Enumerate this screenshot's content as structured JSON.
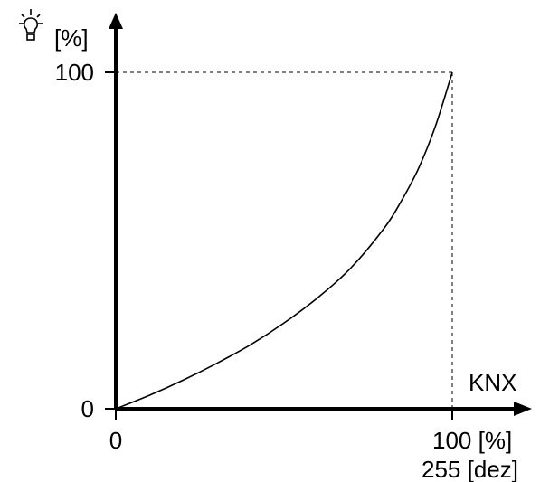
{
  "chart_data": {
    "type": "line",
    "y_unit": "[%]",
    "x_label": "KNX",
    "x_ticks": [
      {
        "value": 0,
        "label": "0",
        "sublabel": ""
      },
      {
        "value": 100,
        "label": "100 [%]",
        "sublabel": "255 [dez]"
      }
    ],
    "y_ticks": [
      {
        "value": 0,
        "label": "0"
      },
      {
        "value": 100,
        "label": "100"
      }
    ],
    "xlim": [
      0,
      100
    ],
    "ylim": [
      0,
      100
    ],
    "series": [
      {
        "x": [
          0,
          10,
          20,
          30,
          40,
          50,
          60,
          70,
          80,
          85,
          90,
          95,
          100
        ],
        "y": [
          0,
          4,
          8.5,
          13.5,
          19,
          25.5,
          33,
          42,
          54,
          62,
          71.5,
          84,
          100
        ]
      }
    ],
    "reference_lines": true,
    "line_color": "#000000",
    "icon": "light-bulb-icon"
  }
}
